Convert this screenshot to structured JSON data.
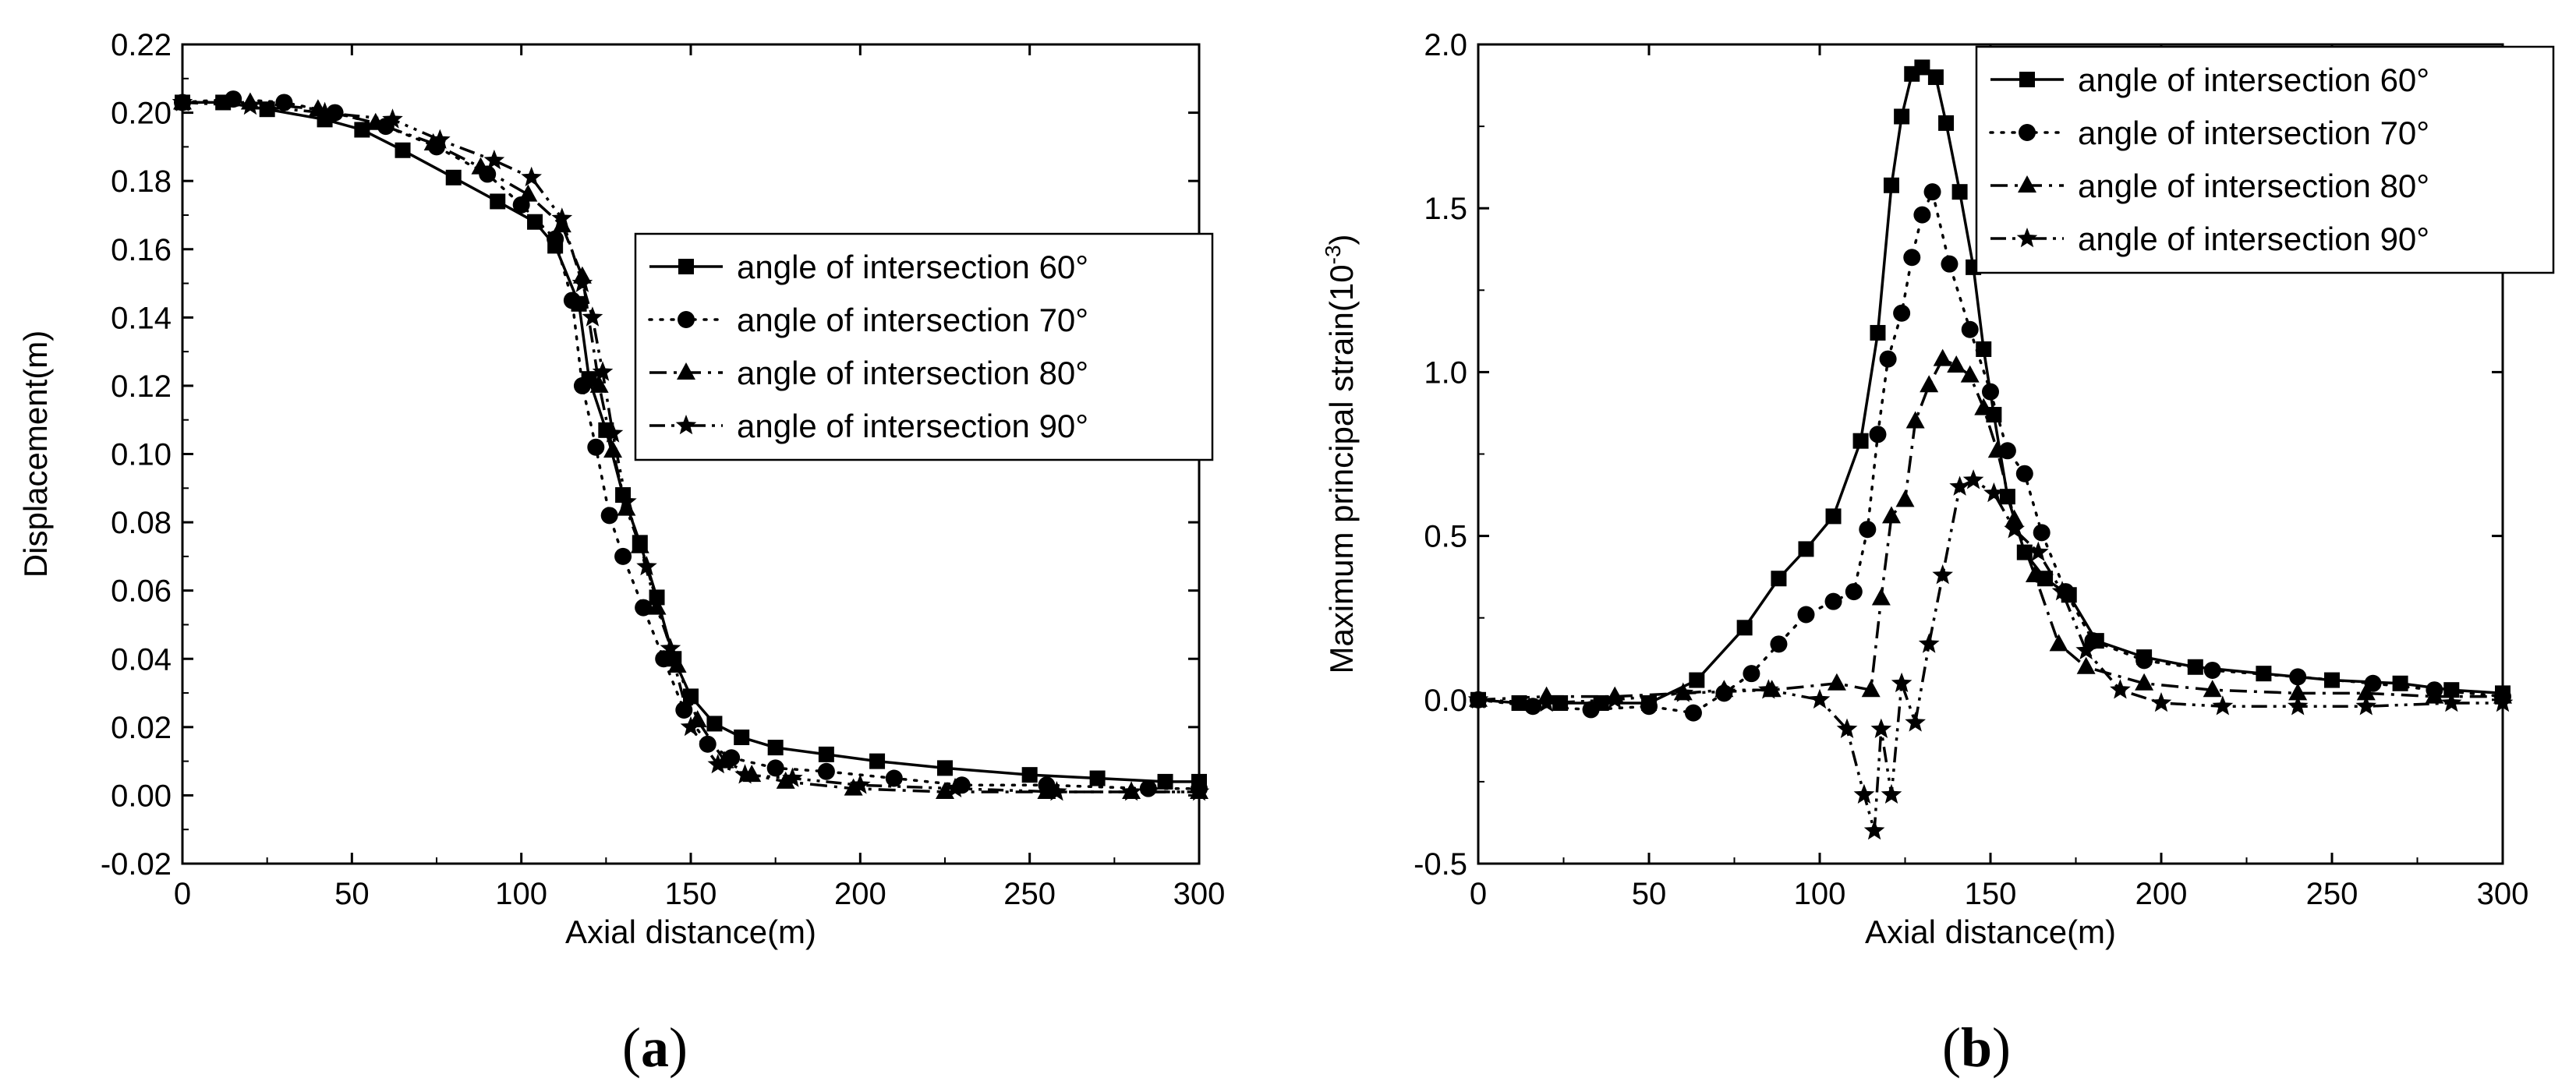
{
  "chart_data": [
    {
      "type": "line",
      "panel_label": "(a)",
      "panel_label_letter": "a",
      "xlabel": "Axial distance(m)",
      "ylabel": "Displacement(m)",
      "xlim": [
        0,
        300
      ],
      "ylim": [
        -0.02,
        0.22
      ],
      "xticks": [
        "0",
        "50",
        "100",
        "150",
        "200",
        "250",
        "300"
      ],
      "yticks": [
        "-0.02",
        "0.00",
        "0.02",
        "0.04",
        "0.06",
        "0.08",
        "0.10",
        "0.12",
        "0.14",
        "0.16",
        "0.18",
        "0.20",
        "0.22"
      ],
      "legend_position": "center-right",
      "series": [
        {
          "name": "angle of intersection 60°",
          "marker": "square",
          "line": "solid",
          "x": [
            0,
            12,
            25,
            42,
            53,
            65,
            80,
            93,
            104,
            110,
            117,
            120,
            125,
            130,
            135,
            140,
            145,
            150,
            157,
            165,
            175,
            190,
            205,
            225,
            250,
            270,
            290,
            300
          ],
          "y": [
            0.203,
            0.203,
            0.201,
            0.198,
            0.195,
            0.189,
            0.181,
            0.174,
            0.168,
            0.161,
            0.144,
            0.122,
            0.107,
            0.088,
            0.074,
            0.058,
            0.04,
            0.029,
            0.021,
            0.017,
            0.014,
            0.012,
            0.01,
            0.008,
            0.006,
            0.005,
            0.004,
            0.004
          ]
        },
        {
          "name": "angle of intersection 70°",
          "marker": "circle",
          "line": "dotted",
          "x": [
            0,
            15,
            30,
            45,
            60,
            75,
            90,
            100,
            110,
            115,
            118,
            122,
            126,
            130,
            136,
            142,
            148,
            155,
            162,
            175,
            190,
            210,
            230,
            255,
            285,
            300
          ],
          "y": [
            0.203,
            0.204,
            0.203,
            0.2,
            0.196,
            0.19,
            0.182,
            0.173,
            0.163,
            0.145,
            0.12,
            0.102,
            0.082,
            0.07,
            0.055,
            0.04,
            0.025,
            0.015,
            0.011,
            0.008,
            0.007,
            0.005,
            0.003,
            0.003,
            0.002,
            0.002
          ]
        },
        {
          "name": "angle of intersection 80°",
          "marker": "triangle",
          "line": "dashdot",
          "x": [
            0,
            20,
            40,
            57,
            74,
            88,
            102,
            112,
            118,
            123,
            127,
            131,
            135,
            140,
            146,
            152,
            160,
            168,
            178,
            198,
            225,
            255,
            280,
            300
          ],
          "y": [
            0.203,
            0.203,
            0.201,
            0.197,
            0.191,
            0.184,
            0.176,
            0.167,
            0.152,
            0.12,
            0.101,
            0.084,
            0.073,
            0.055,
            0.038,
            0.022,
            0.01,
            0.006,
            0.004,
            0.002,
            0.001,
            0.001,
            0.001,
            0.001
          ]
        },
        {
          "name": "angle of intersection 90°",
          "marker": "star",
          "line": "dashdotdot",
          "x": [
            0,
            20,
            42,
            62,
            76,
            92,
            103,
            112,
            118,
            121,
            124,
            127,
            131,
            137,
            144,
            150,
            158,
            166,
            180,
            200,
            228,
            258,
            280,
            300
          ],
          "y": [
            0.203,
            0.202,
            0.2,
            0.198,
            0.192,
            0.186,
            0.181,
            0.169,
            0.15,
            0.14,
            0.124,
            0.106,
            0.086,
            0.067,
            0.043,
            0.02,
            0.009,
            0.006,
            0.005,
            0.003,
            0.002,
            0.001,
            0.001,
            0.001
          ]
        }
      ]
    },
    {
      "type": "line",
      "panel_label": "(b)",
      "panel_label_letter": "b",
      "xlabel": "Axial distance(m)",
      "ylabel": "Maximum principal strain(10",
      "ylabel_sup": "-3",
      "ylabel_end": ")",
      "xlim": [
        0,
        300
      ],
      "ylim": [
        -0.5,
        2.0
      ],
      "xticks": [
        "0",
        "50",
        "100",
        "150",
        "200",
        "250",
        "300"
      ],
      "yticks": [
        "-0.5",
        "0.0",
        "0.5",
        "1.0",
        "1.5",
        "2.0"
      ],
      "legend_position": "top-right",
      "series": [
        {
          "name": "angle of intersection 60°",
          "marker": "square",
          "line": "solid",
          "x": [
            0,
            12,
            24,
            36,
            50,
            64,
            78,
            88,
            96,
            104,
            112,
            117,
            121,
            124,
            127,
            130,
            134,
            137,
            141,
            145,
            148,
            151,
            155,
            160,
            166,
            173,
            181,
            195,
            210,
            230,
            250,
            270,
            285,
            300
          ],
          "y": [
            0.0,
            -0.01,
            -0.01,
            -0.01,
            -0.01,
            0.06,
            0.22,
            0.37,
            0.46,
            0.56,
            0.79,
            1.12,
            1.57,
            1.78,
            1.91,
            1.93,
            1.9,
            1.76,
            1.55,
            1.32,
            1.07,
            0.87,
            0.62,
            0.45,
            0.37,
            0.32,
            0.18,
            0.13,
            0.1,
            0.08,
            0.06,
            0.05,
            0.03,
            0.02
          ]
        },
        {
          "name": "angle of intersection 70°",
          "marker": "circle",
          "line": "dotted",
          "x": [
            0,
            16,
            33,
            50,
            63,
            72,
            80,
            88,
            96,
            104,
            110,
            114,
            117,
            120,
            124,
            127,
            130,
            133,
            138,
            144,
            150,
            155,
            160,
            165,
            172,
            180,
            195,
            215,
            240,
            262,
            280,
            300
          ],
          "y": [
            0.0,
            -0.02,
            -0.03,
            -0.02,
            -0.04,
            0.02,
            0.08,
            0.17,
            0.26,
            0.3,
            0.33,
            0.52,
            0.81,
            1.04,
            1.18,
            1.35,
            1.48,
            1.55,
            1.33,
            1.13,
            0.94,
            0.76,
            0.69,
            0.51,
            0.33,
            0.18,
            0.12,
            0.09,
            0.07,
            0.05,
            0.03,
            0.01
          ]
        },
        {
          "name": "angle of intersection 80°",
          "marker": "triangle",
          "line": "dashdot",
          "x": [
            0,
            20,
            40,
            60,
            72,
            86,
            105,
            115,
            118,
            121,
            125,
            128,
            132,
            136,
            140,
            144,
            148,
            152,
            157,
            163,
            170,
            178,
            195,
            215,
            240,
            260,
            280,
            300
          ],
          "y": [
            0.0,
            0.01,
            0.01,
            0.02,
            0.03,
            0.03,
            0.05,
            0.03,
            0.31,
            0.56,
            0.61,
            0.85,
            0.96,
            1.04,
            1.02,
            0.99,
            0.89,
            0.76,
            0.55,
            0.38,
            0.17,
            0.1,
            0.05,
            0.03,
            0.02,
            0.02,
            0.01,
            0.01
          ]
        },
        {
          "name": "angle of intersection 90°",
          "marker": "star",
          "line": "dashdotdot",
          "x": [
            0,
            20,
            40,
            60,
            85,
            100,
            108,
            113,
            116,
            118,
            121,
            124,
            128,
            132,
            136,
            141,
            145,
            151,
            157,
            164,
            171,
            178,
            188,
            200,
            218,
            240,
            260,
            285,
            300
          ],
          "y": [
            0.0,
            -0.01,
            0.0,
            0.02,
            0.03,
            0.0,
            -0.09,
            -0.29,
            -0.4,
            -0.09,
            -0.29,
            0.05,
            -0.07,
            0.17,
            0.38,
            0.65,
            0.67,
            0.63,
            0.52,
            0.45,
            0.33,
            0.15,
            0.03,
            -0.01,
            -0.02,
            -0.02,
            -0.02,
            -0.01,
            -0.01
          ]
        }
      ]
    }
  ]
}
